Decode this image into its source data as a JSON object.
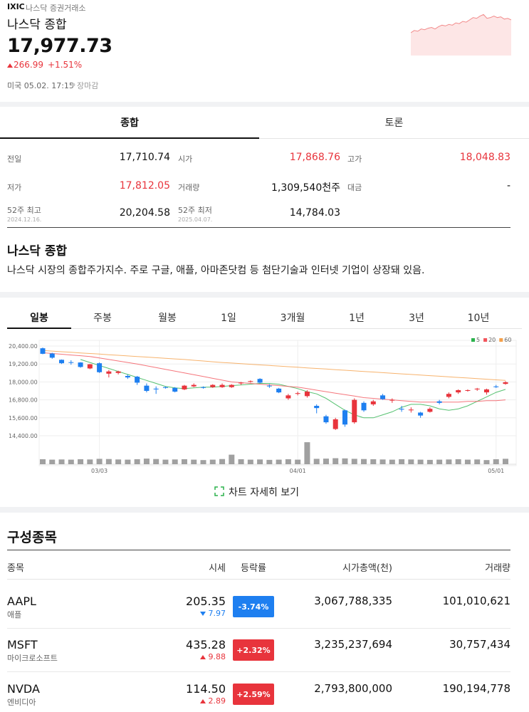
{
  "header": {
    "symbol": "IXIC",
    "exchange": "나스닥 증권거래소",
    "name": "나스닥 종합",
    "price": "17,977.73",
    "change": "266.99",
    "change_pct": "+1.51%",
    "time": "미국 05.02. 17:15",
    "status": "장마감",
    "intraday": {
      "values": [
        17800,
        17830,
        17820,
        17850,
        17840,
        17860,
        17870,
        17850,
        17880,
        17900,
        17890,
        17910,
        17900,
        17930,
        17920,
        17950,
        17940,
        17970,
        18000,
        17990,
        18020,
        18040,
        17990,
        18000,
        18020,
        18000,
        18010,
        17980,
        17990,
        17970
      ],
      "ylim": [
        17500,
        18100
      ],
      "color": "#f28b8b",
      "fill": "#fde6e6"
    }
  },
  "tabs": [
    "종합",
    "토론"
  ],
  "stats": [
    {
      "label": "전일",
      "value": "17,710.74"
    },
    {
      "label": "시가",
      "value": "17,868.76",
      "color": "#e8343c"
    },
    {
      "label": "고가",
      "value": "18,048.83",
      "color": "#e8343c"
    },
    {
      "label": "저가",
      "value": "17,812.05",
      "color": "#e8343c"
    },
    {
      "label": "거래량",
      "value": "1,309,540천주"
    },
    {
      "label": "대금",
      "value": "-"
    },
    {
      "label": "52주 최고",
      "date": "2024.12.16.",
      "value": "20,204.58"
    },
    {
      "label": "52주 최저",
      "date": "2025.04.07.",
      "value": "14,784.03"
    }
  ],
  "description": {
    "title": "나스닥 종합",
    "text": "나스닥 시장의 종합주가지수. 주로 구글, 애플, 아마존닷컴 등 첨단기술과 인터넷 기업이 상장돼 있음."
  },
  "periods": [
    "일봉",
    "주봉",
    "월봉",
    "1일",
    "3개월",
    "1년",
    "3년",
    "10년"
  ],
  "chart_data": {
    "type": "candlestick",
    "categories": [
      null,
      null,
      null,
      null,
      null,
      null,
      "03/03",
      null,
      null,
      null,
      null,
      null,
      null,
      null,
      null,
      null,
      null,
      null,
      null,
      null,
      null,
      null,
      null,
      null,
      null,
      null,
      null,
      "04/01",
      null,
      null,
      null,
      null,
      null,
      null,
      null,
      null,
      null,
      null,
      null,
      null,
      null,
      null,
      null,
      null,
      null,
      null,
      null,
      null,
      "05/01",
      null
    ],
    "open": [
      20250,
      19900,
      19480,
      19320,
      19300,
      18900,
      19250,
      18550,
      18600,
      18400,
      18350,
      17750,
      17550,
      17650,
      17600,
      17500,
      17700,
      17650,
      17650,
      17650,
      17650,
      17900,
      18000,
      18200,
      17750,
      17550,
      16900,
      17200,
      17050,
      16400,
      15700,
      14850,
      16100,
      15300,
      16600,
      16500,
      17100,
      16750,
      16200,
      16100,
      15950,
      16000,
      16700,
      17000,
      17300,
      17400,
      17500,
      17300,
      17700,
      17868.76
    ],
    "high": [
      20300,
      19950,
      19500,
      19450,
      19320,
      19200,
      19300,
      18800,
      18750,
      18500,
      18400,
      17900,
      17700,
      17700,
      17650,
      17800,
      17900,
      17700,
      17850,
      17900,
      17850,
      18000,
      18100,
      18250,
      17850,
      17600,
      17200,
      17350,
      17450,
      16500,
      15800,
      15600,
      16150,
      16900,
      16700,
      16800,
      17200,
      16900,
      16400,
      16300,
      16000,
      16300,
      16800,
      17300,
      17500,
      17500,
      17600,
      17550,
      17800,
      18048.83
    ],
    "low": [
      19850,
      19550,
      19200,
      19150,
      18950,
      18850,
      18600,
      18300,
      18500,
      18200,
      17800,
      17300,
      17200,
      17550,
      17300,
      17450,
      17650,
      17550,
      17600,
      17600,
      17600,
      17800,
      17950,
      17900,
      17600,
      17250,
      16800,
      17100,
      16950,
      15900,
      15200,
      14784.03,
      15000,
      15200,
      16000,
      16400,
      16800,
      16600,
      16000,
      15950,
      15600,
      15950,
      16500,
      16900,
      17200,
      17350,
      17400,
      17150,
      17600,
      17812.05
    ],
    "close": [
      19880,
      19620,
      19250,
      19280,
      19000,
      19180,
      18650,
      18700,
      18700,
      18300,
      17950,
      17400,
      17500,
      17600,
      17350,
      17750,
      17800,
      17600,
      17800,
      17800,
      17800,
      17950,
      18050,
      17950,
      17700,
      17300,
      17100,
      17250,
      17350,
      16250,
      15300,
      15500,
      15150,
      16800,
      16100,
      16700,
      16850,
      16800,
      16150,
      16150,
      15750,
      16200,
      16600,
      17200,
      17450,
      17450,
      17550,
      17500,
      17650,
      17977.73
    ],
    "up_color": "#e8343c",
    "down_color": "#1e7ff0",
    "series": [
      {
        "name": "5",
        "color": "#2bb24c",
        "values": [
          null,
          null,
          null,
          null,
          19500,
          19300,
          19100,
          18900,
          18700,
          18500,
          18300,
          18100,
          17900,
          17700,
          17600,
          17550,
          17600,
          17650,
          17650,
          17700,
          17750,
          17800,
          17850,
          17900,
          17900,
          17850,
          17700,
          17550,
          17350,
          17200,
          16900,
          16500,
          16100,
          15800,
          15600,
          15600,
          15800,
          16000,
          16300,
          16500,
          16500,
          16400,
          16200,
          16100,
          16200,
          16400,
          16700,
          17000,
          17300,
          17500
        ]
      },
      {
        "name": "20",
        "color": "#f2545b",
        "values": [
          19950,
          19900,
          19850,
          19800,
          19750,
          19700,
          19600,
          19500,
          19400,
          19300,
          19200,
          19080,
          18960,
          18840,
          18720,
          18600,
          18480,
          18360,
          18240,
          18120,
          18000,
          17950,
          17900,
          17850,
          17800,
          17750,
          17700,
          17650,
          17550,
          17450,
          17350,
          17250,
          17150,
          17050,
          16950,
          16900,
          16850,
          16800,
          16750,
          16700,
          16650,
          16650,
          16650,
          16650,
          16650,
          16700,
          16700,
          16750,
          16750,
          16800
        ]
      },
      {
        "name": "60",
        "color": "#f5a04a",
        "values": [
          20100,
          20060,
          20020,
          19980,
          19940,
          19900,
          19860,
          19820,
          19780,
          19740,
          19700,
          19660,
          19620,
          19580,
          19540,
          19500,
          19450,
          19400,
          19350,
          19300,
          19260,
          19220,
          19180,
          19140,
          19100,
          19060,
          19020,
          18980,
          18940,
          18900,
          18860,
          18820,
          18780,
          18740,
          18700,
          18660,
          18620,
          18580,
          18540,
          18500,
          18460,
          18420,
          18380,
          18340,
          18300,
          18260,
          18220,
          18180,
          18140,
          18100
        ]
      }
    ],
    "volume": {
      "color": "#a0a0a0",
      "ylim": [
        0,
        6000000
      ],
      "values": [
        1200000,
        1100000,
        1150000,
        1100000,
        1200000,
        1150000,
        1300000,
        1250000,
        1150000,
        1100000,
        1200000,
        1350000,
        1250000,
        1100000,
        1150000,
        1200000,
        1100000,
        1000000,
        1100000,
        1250000,
        2300000,
        1200000,
        1100000,
        1150000,
        1050000,
        1100000,
        1200000,
        1100000,
        5300000,
        1300000,
        1350000,
        1450000,
        1400000,
        1300000,
        1250000,
        1200000,
        1150000,
        1100000,
        1200000,
        1150000,
        1100000,
        1050000,
        1100000,
        1150000,
        1200000,
        1100000,
        1150000,
        1000000,
        1200000,
        1309540
      ]
    },
    "ylim": [
      14400,
      20400
    ],
    "yticks": [
      {
        "value": 20400,
        "label": "20,400.00"
      },
      {
        "value": 19200,
        "label": "19,200.00"
      },
      {
        "value": 18000,
        "label": "18,000.00"
      },
      {
        "value": 16800,
        "label": "16,800.00"
      },
      {
        "value": 15600,
        "label": "15,600.00"
      },
      {
        "value": 14400,
        "label": "14,400.00"
      }
    ],
    "grid": true,
    "legend": "top-right"
  },
  "chart_link": "차트 자세히 보기",
  "constituents": {
    "title": "구성종목",
    "headers": [
      "종목",
      "시세",
      "등락률",
      "시가총액(천)",
      "거래량"
    ],
    "rows": [
      {
        "ticker": "AAPL",
        "name": "애플",
        "price": "205.35",
        "change": "7.97",
        "pct": "-3.74%",
        "cap": "3,067,788,335",
        "volume": "101,010,621"
      },
      {
        "ticker": "MSFT",
        "name": "마이크로소프트",
        "price": "435.28",
        "change": "9.88",
        "pct": "+2.32%",
        "cap": "3,235,237,694",
        "volume": "30,757,434"
      },
      {
        "ticker": "NVDA",
        "name": "엔비디아",
        "price": "114.50",
        "change": "2.89",
        "pct": "+2.59%",
        "cap": "2,793,800,000",
        "volume": "190,194,778"
      }
    ]
  }
}
